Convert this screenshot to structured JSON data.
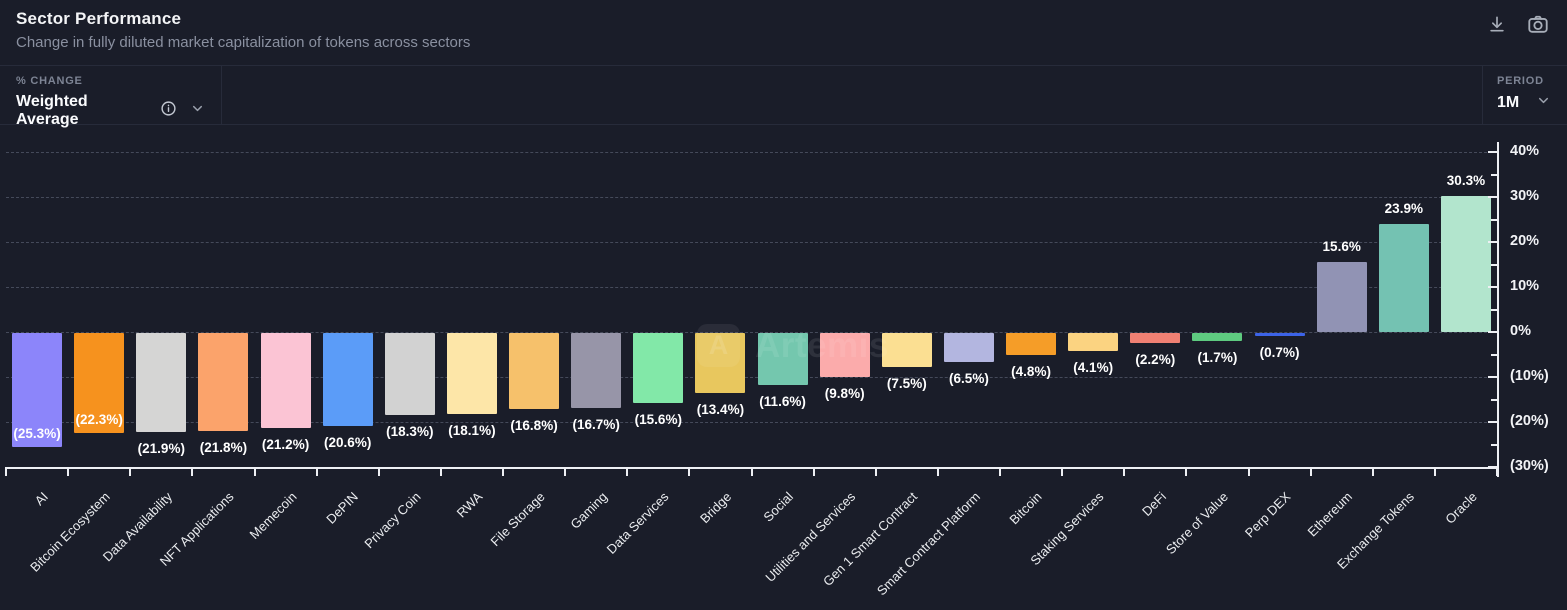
{
  "header": {
    "title": "Sector Performance",
    "subtitle": "Change in fully diluted market capitalization of tokens across sectors"
  },
  "controls": {
    "metric": {
      "label": "% CHANGE",
      "value": "Weighted Average"
    },
    "period": {
      "label": "PERIOD",
      "value": "1M"
    }
  },
  "watermark": {
    "logo_letter": "A",
    "text": "Artemis"
  },
  "chart_data": {
    "type": "bar",
    "title": "Sector Performance",
    "xlabel": "",
    "ylabel": "% Change",
    "ylim": [
      -30,
      40
    ],
    "grid": "dashed horizontal",
    "axis_position": "right",
    "legend": "none",
    "categories": [
      "AI",
      "Bitcoin Ecosystem",
      "Data Availability",
      "NFT Applications",
      "Memecoin",
      "DePIN",
      "Privacy Coin",
      "RWA",
      "File Storage",
      "Gaming",
      "Data Services",
      "Bridge",
      "Social",
      "Utilities and Services",
      "Gen 1 Smart Contract",
      "Smart Contract Platform",
      "Bitcoin",
      "Staking Services",
      "DeFi",
      "Store of Value",
      "Perp DEX",
      "Ethereum",
      "Exchange Tokens",
      "Oracle"
    ],
    "values": [
      -25.3,
      -22.3,
      -21.9,
      -21.8,
      -21.2,
      -20.6,
      -18.3,
      -18.1,
      -16.8,
      -16.7,
      -15.6,
      -13.4,
      -11.6,
      -9.8,
      -7.5,
      -6.5,
      -4.8,
      -4.1,
      -2.2,
      -1.7,
      -0.7,
      15.6,
      23.9,
      30.3
    ],
    "value_labels": [
      "(25.3%)",
      "(22.3%)",
      "(21.9%)",
      "(21.8%)",
      "(21.2%)",
      "(20.6%)",
      "(18.3%)",
      "(18.1%)",
      "(16.8%)",
      "(16.7%)",
      "(15.6%)",
      "(13.4%)",
      "(11.6%)",
      "(9.8%)",
      "(7.5%)",
      "(6.5%)",
      "(4.8%)",
      "(4.1%)",
      "(2.2%)",
      "(1.7%)",
      "(0.7%)",
      "15.6%",
      "23.9%",
      "30.3%"
    ],
    "bar_colors": [
      "#8c85fa",
      "#f6921e",
      "#d5d5d4",
      "#fba36b",
      "#fbc4d4",
      "#5b9cf8",
      "#d2d2d2",
      "#fde6a8",
      "#f6c16b",
      "#9795a8",
      "#82e8a8",
      "#e8c75e",
      "#74c7ae",
      "#fbabab",
      "#fbdf92",
      "#b3b6e0",
      "#f59d28",
      "#fbd381",
      "#f08073",
      "#5ecb80",
      "#3c63e8",
      "#9193b4",
      "#74c2b2",
      "#b2e5cd"
    ],
    "y_ticks": [
      {
        "value": 40,
        "label": "40%"
      },
      {
        "value": 30,
        "label": "30%"
      },
      {
        "value": 20,
        "label": "20%"
      },
      {
        "value": 10,
        "label": "10%"
      },
      {
        "value": 0,
        "label": "0%"
      },
      {
        "value": -10,
        "label": "(10%)"
      },
      {
        "value": -20,
        "label": "(20%)"
      },
      {
        "value": -30,
        "label": "(30%)"
      }
    ],
    "y_minor_ticks": [
      35,
      25,
      15,
      5,
      -5,
      -15,
      -25
    ]
  },
  "ui_colors": {
    "background": "#1a1d29",
    "border": "#272b3a",
    "axis": "#eef0f4",
    "text_primary": "#f3f4f6",
    "text_secondary": "#8a90a0"
  }
}
